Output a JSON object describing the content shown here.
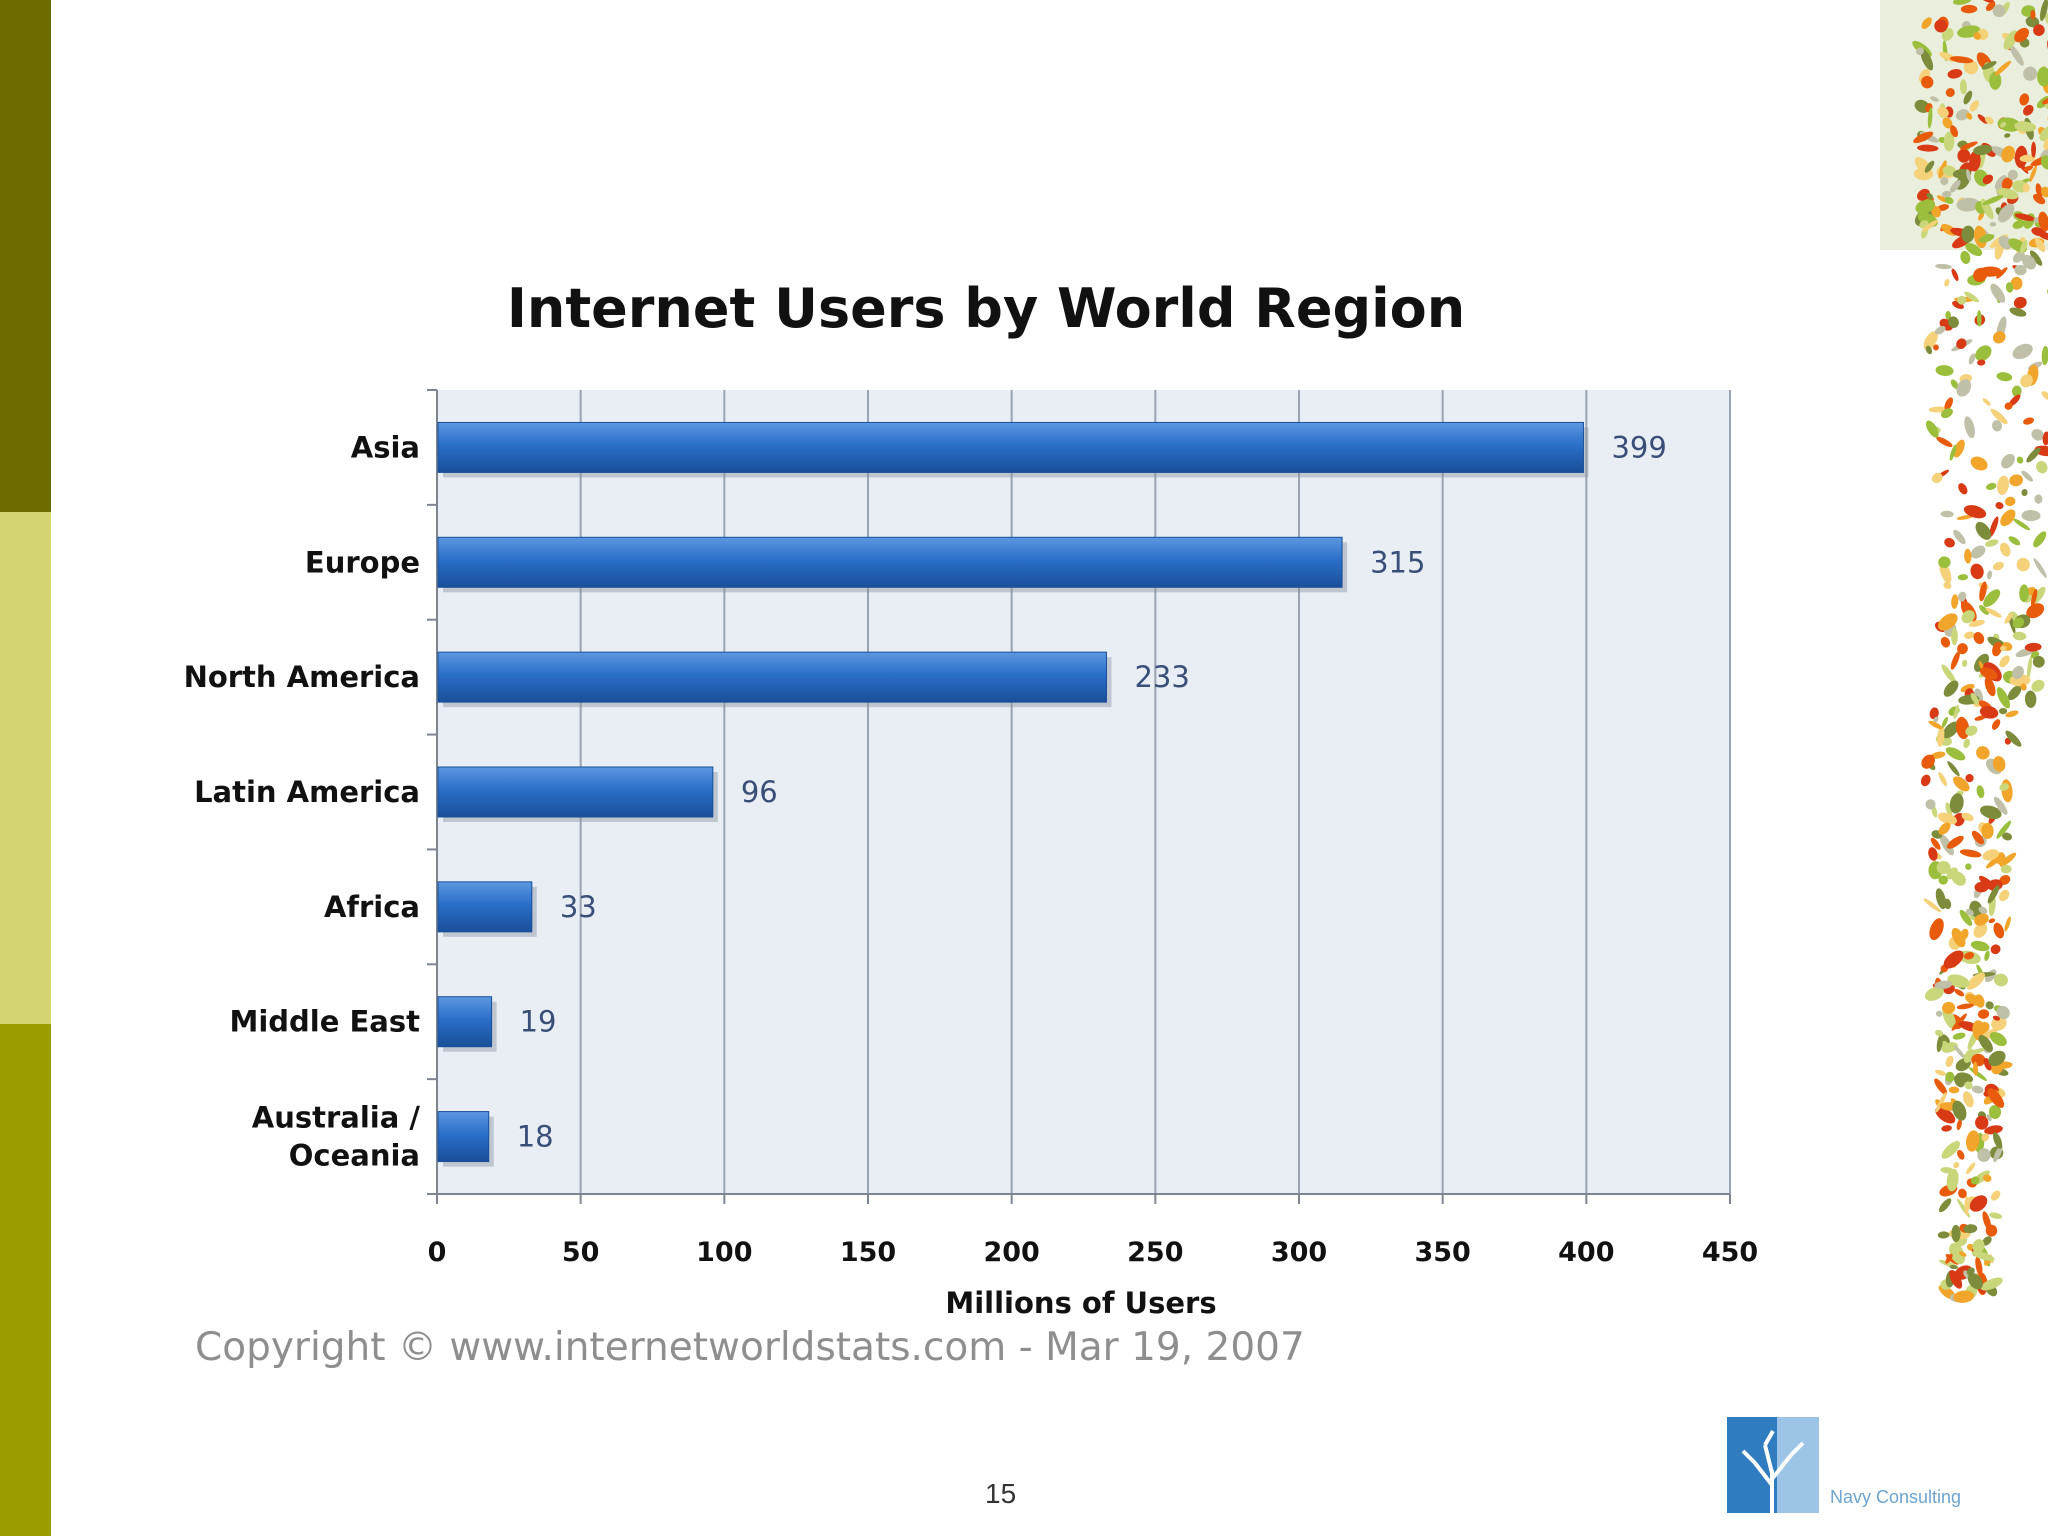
{
  "colors": {
    "band_top": "#6b6b00",
    "band_mid": "#d4d473",
    "band_bot": "#9a9c00",
    "bar": "#2a6fc9",
    "bar_dark": "#1a4f99",
    "plot_bg": "#e8eef6",
    "gridline": "#9aa3b1",
    "value_label": "#3a4f78"
  },
  "chart_data": {
    "type": "bar",
    "orientation": "horizontal",
    "title": "Internet Users by World Region",
    "xlabel": "Millions of Users",
    "ylabel": "",
    "categories": [
      "Asia",
      "Europe",
      "North America",
      "Latin America",
      "Africa",
      "Middle East",
      "Australia / Oceania"
    ],
    "category_lines": [
      [
        "Asia"
      ],
      [
        "Europe"
      ],
      [
        "North America"
      ],
      [
        "Latin America"
      ],
      [
        "Africa"
      ],
      [
        "Middle East"
      ],
      [
        "Australia /",
        "Oceania"
      ]
    ],
    "values": [
      399,
      315,
      233,
      96,
      33,
      19,
      18
    ],
    "xlim": [
      0,
      450
    ],
    "xticks": [
      0,
      50,
      100,
      150,
      200,
      250,
      300,
      350,
      400,
      450
    ],
    "grid": true,
    "legend": "none"
  },
  "copyright": "Copyright © www.internetworldstats.com - Mar 19, 2007",
  "page_number": "15",
  "logo": {
    "icon": "tree-logo-icon",
    "label": "Navy Consulting"
  },
  "decoration": {
    "icon": "floral-border-icon"
  }
}
